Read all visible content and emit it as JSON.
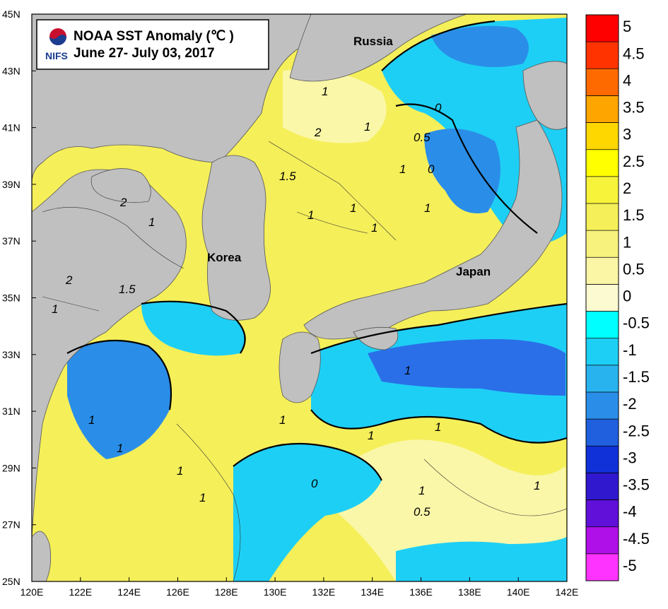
{
  "title": {
    "line1": "NOAA SST Anomaly (℃ )",
    "line2": "June 27- July 03, 2017",
    "logo_text": "NIFS"
  },
  "axes": {
    "lat_ticks": [
      "45N",
      "43N",
      "41N",
      "39N",
      "37N",
      "35N",
      "33N",
      "31N",
      "29N",
      "27N",
      "25N"
    ],
    "lon_ticks": [
      "120E",
      "122E",
      "124E",
      "126E",
      "128E",
      "130E",
      "132E",
      "134E",
      "136E",
      "138E",
      "140E",
      "142E"
    ],
    "lat_range": [
      25,
      45
    ],
    "lon_range": [
      120,
      142
    ]
  },
  "places": {
    "russia": "Russia",
    "korea": "Korea",
    "japan": "Japan"
  },
  "contour_labels": {
    "c1": "1",
    "c2": "1",
    "c3": "0",
    "c4": "2",
    "c5": "0.5",
    "c6": "0",
    "c7": "1.5",
    "c8": "1",
    "c9": "1",
    "c10": "1",
    "c11": "1",
    "c12": "1",
    "c13": "2",
    "c14": "1",
    "c15": "2",
    "c16": "1.5",
    "c17": "1",
    "c18": "1",
    "c19": "1",
    "c20": "1",
    "c21": "1",
    "c22": "1",
    "c23": "1",
    "c24": "1",
    "c25": "0",
    "c26": "1",
    "c27": "0.5",
    "c28": "1",
    "c29": "1"
  },
  "colorbar": {
    "labels": [
      "5",
      "4.5",
      "4",
      "3.5",
      "3",
      "2.5",
      "2",
      "1.5",
      "1",
      "0.5",
      "0",
      "-0.5",
      "-1",
      "-1.5",
      "-2",
      "-2.5",
      "-3",
      "-3.5",
      "-4",
      "-4.5",
      "-5"
    ],
    "colors": [
      "#ff0000",
      "#ff3300",
      "#ff6a00",
      "#ffa500",
      "#ffd700",
      "#ffff00",
      "#f7f33a",
      "#f5ef5a",
      "#f7f27e",
      "#faf6a6",
      "#fcfad0",
      "#00ffff",
      "#1ecff5",
      "#29b3ee",
      "#2a8ee8",
      "#2060df",
      "#1030d8",
      "#3018cf",
      "#6010d8",
      "#b010e8",
      "#ff33ff"
    ]
  },
  "colors": {
    "land": "#c0c0c0",
    "warm": "#f5ef5a",
    "warm_light": "#fbf7a8",
    "cool": "#1ecff5",
    "cold": "#2a6fe8",
    "deep": "#2030d8"
  }
}
